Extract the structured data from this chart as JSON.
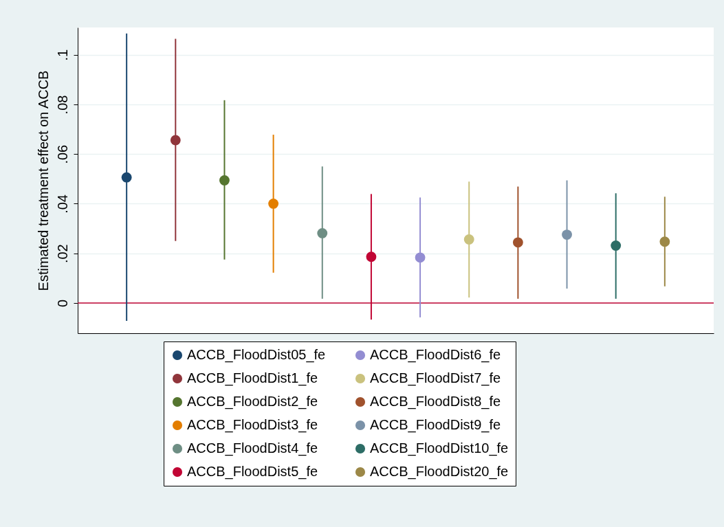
{
  "chart_data": {
    "type": "scatter",
    "ylabel": "Estimated treatment effect on ACCB",
    "categories": [
      null,
      null,
      null,
      null,
      null,
      null,
      null,
      null,
      null,
      null,
      null,
      null
    ],
    "ylim": [
      -0.0122,
      0.111
    ],
    "yticks": [
      0,
      {
        "value": 0.02,
        "label": ".02"
      },
      {
        "value": 0.04,
        "label": ".04"
      },
      {
        "value": 0.06,
        "label": ".06"
      },
      {
        "value": 0.08,
        "label": ".08"
      },
      {
        "value": 0.1,
        "label": ".1"
      }
    ],
    "grid": "y",
    "legend": "bottom",
    "marker": "circle",
    "ref_lines": [
      {
        "axis": "y",
        "value": 0,
        "color": "#c10534"
      }
    ],
    "series": [
      {
        "name": "ACCB_FloodDist05_fe",
        "color": "#1a476f",
        "values": [
          0.0506,
          null,
          null,
          null,
          null,
          null,
          null,
          null,
          null,
          null,
          null,
          null
        ],
        "errors": [
          [
            -0.0072,
            0.1086
          ],
          null,
          null,
          null,
          null,
          null,
          null,
          null,
          null,
          null,
          null,
          null
        ]
      },
      {
        "name": "ACCB_FloodDist1_fe",
        "color": "#90353b",
        "values": [
          null,
          0.0656,
          null,
          null,
          null,
          null,
          null,
          null,
          null,
          null,
          null,
          null
        ],
        "errors": [
          null,
          [
            0.025,
            0.1064
          ],
          null,
          null,
          null,
          null,
          null,
          null,
          null,
          null,
          null,
          null
        ]
      },
      {
        "name": "ACCB_FloodDist2_fe",
        "color": "#55752f",
        "values": [
          null,
          null,
          0.0494,
          null,
          null,
          null,
          null,
          null,
          null,
          null,
          null,
          null
        ],
        "errors": [
          null,
          null,
          [
            0.0175,
            0.0817
          ],
          null,
          null,
          null,
          null,
          null,
          null,
          null,
          null,
          null
        ]
      },
      {
        "name": "ACCB_FloodDist3_fe",
        "color": "#e37e00",
        "values": [
          null,
          null,
          null,
          0.04,
          null,
          null,
          null,
          null,
          null,
          null,
          null,
          null
        ],
        "errors": [
          null,
          null,
          null,
          [
            0.0122,
            0.0678
          ],
          null,
          null,
          null,
          null,
          null,
          null,
          null,
          null
        ]
      },
      {
        "name": "ACCB_FloodDist4_fe",
        "color": "#6e8e84",
        "values": [
          null,
          null,
          null,
          null,
          0.0281,
          null,
          null,
          null,
          null,
          null,
          null,
          null
        ],
        "errors": [
          null,
          null,
          null,
          null,
          [
            0.0017,
            0.055
          ],
          null,
          null,
          null,
          null,
          null,
          null,
          null
        ]
      },
      {
        "name": "ACCB_FloodDist5_fe",
        "color": "#c10534",
        "values": [
          null,
          null,
          null,
          null,
          null,
          0.0186,
          null,
          null,
          null,
          null,
          null,
          null
        ],
        "errors": [
          null,
          null,
          null,
          null,
          null,
          [
            -0.0067,
            0.0439
          ],
          null,
          null,
          null,
          null,
          null,
          null
        ]
      },
      {
        "name": "ACCB_FloodDist6_fe",
        "color": "#938dd2",
        "values": [
          null,
          null,
          null,
          null,
          null,
          null,
          0.0183,
          null,
          null,
          null,
          null,
          null
        ],
        "errors": [
          null,
          null,
          null,
          null,
          null,
          null,
          [
            -0.0058,
            0.0425
          ],
          null,
          null,
          null,
          null,
          null
        ]
      },
      {
        "name": "ACCB_FloodDist7_fe",
        "color": "#cac27e",
        "values": [
          null,
          null,
          null,
          null,
          null,
          null,
          null,
          0.0256,
          null,
          null,
          null,
          null
        ],
        "errors": [
          null,
          null,
          null,
          null,
          null,
          null,
          null,
          [
            0.0022,
            0.0489
          ],
          null,
          null,
          null,
          null
        ]
      },
      {
        "name": "ACCB_FloodDist8_fe",
        "color": "#a0522d",
        "values": [
          null,
          null,
          null,
          null,
          null,
          null,
          null,
          null,
          0.0244,
          null,
          null,
          null
        ],
        "errors": [
          null,
          null,
          null,
          null,
          null,
          null,
          null,
          null,
          [
            0.0017,
            0.0469
          ],
          null,
          null,
          null
        ]
      },
      {
        "name": "ACCB_FloodDist9_fe",
        "color": "#7b92a8",
        "values": [
          null,
          null,
          null,
          null,
          null,
          null,
          null,
          null,
          null,
          0.0275,
          null,
          null
        ],
        "errors": [
          null,
          null,
          null,
          null,
          null,
          null,
          null,
          null,
          null,
          [
            0.0058,
            0.0494
          ],
          null,
          null
        ]
      },
      {
        "name": "ACCB_FloodDist10_fe",
        "color": "#2d6d66",
        "values": [
          null,
          null,
          null,
          null,
          null,
          null,
          null,
          null,
          null,
          null,
          0.0231,
          null
        ],
        "errors": [
          null,
          null,
          null,
          null,
          null,
          null,
          null,
          null,
          null,
          null,
          [
            0.0017,
            0.0442
          ],
          null
        ]
      },
      {
        "name": "ACCB_FloodDist20_fe",
        "color": "#9c8847",
        "values": [
          null,
          null,
          null,
          null,
          null,
          null,
          null,
          null,
          null,
          null,
          null,
          0.0247
        ],
        "errors": [
          null,
          null,
          null,
          null,
          null,
          null,
          null,
          null,
          null,
          null,
          null,
          [
            0.0067,
            0.0428
          ]
        ]
      }
    ]
  }
}
